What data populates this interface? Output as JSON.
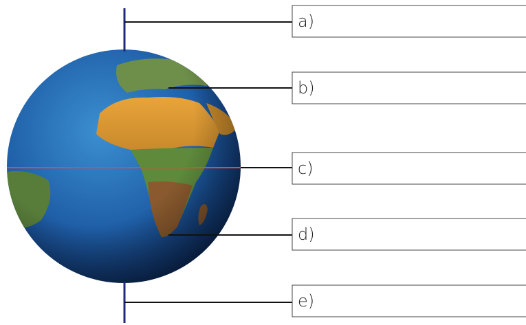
{
  "labels": [
    "a)",
    "b)",
    "c)",
    "d)",
    "e)"
  ]
}
